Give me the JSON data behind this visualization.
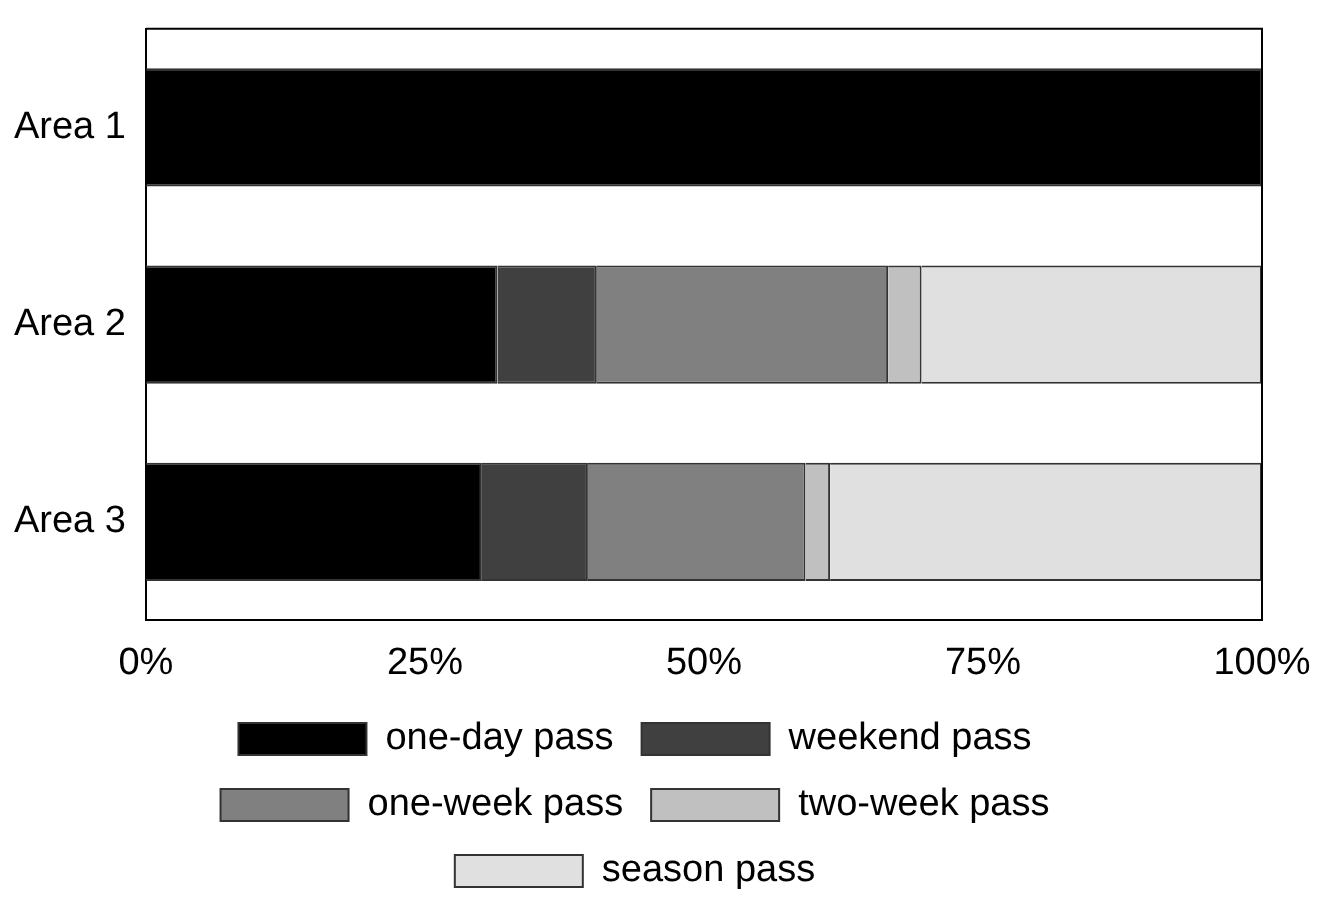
{
  "chart_data": {
    "type": "bar",
    "orientation": "horizontal",
    "stacked": true,
    "categories": [
      "Area 1",
      "Area 2",
      "Area 3"
    ],
    "series": [
      {
        "name": "one-day pass",
        "color": "#000000",
        "values": [
          100,
          31.5,
          30.1
        ]
      },
      {
        "name": "weekend pass",
        "color": "#404040",
        "values": [
          0,
          8.9,
          9.5
        ]
      },
      {
        "name": "one-week pass",
        "color": "#808080",
        "values": [
          0,
          26.1,
          19.5
        ]
      },
      {
        "name": "two-week pass",
        "color": "#c0c0c0",
        "values": [
          0,
          3.0,
          2.2
        ]
      },
      {
        "name": "season pass",
        "color": "#e0e0e0",
        "values": [
          0,
          30.5,
          38.7
        ]
      }
    ],
    "xlim": [
      0,
      100
    ],
    "xticks": [
      {
        "value": 0,
        "label": "0%"
      },
      {
        "value": 25,
        "label": "25%"
      },
      {
        "value": 50,
        "label": "50%"
      },
      {
        "value": 75,
        "label": "75%"
      },
      {
        "value": 100,
        "label": "100%"
      }
    ],
    "grid": false,
    "legend": "bottom"
  }
}
